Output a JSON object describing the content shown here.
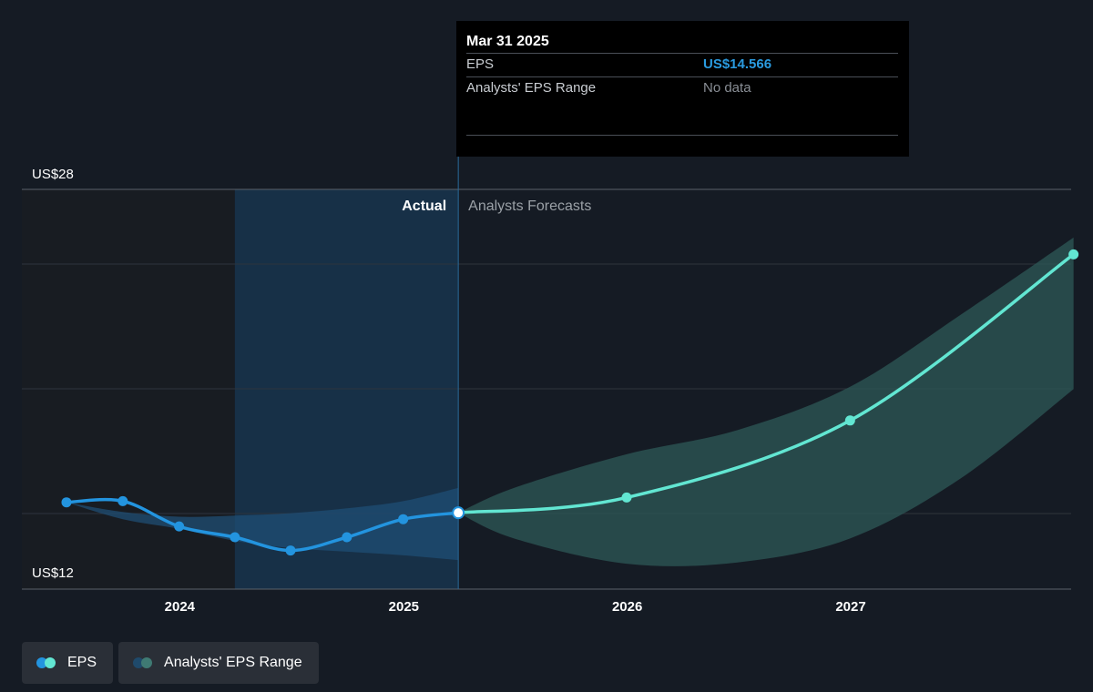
{
  "tooltip": {
    "date": "Mar 31 2025",
    "rows": [
      {
        "label": "EPS",
        "value": "US$14.566"
      },
      {
        "label": "Analysts' EPS Range",
        "value": "No data"
      }
    ]
  },
  "legend": [
    {
      "label": "EPS",
      "colors": [
        "#2394df",
        "#62e6d2"
      ]
    },
    {
      "label": "Analysts' EPS Range",
      "colors": [
        "#1f4a6b",
        "#3f7a73"
      ]
    }
  ],
  "colors": {
    "background": "#151b24",
    "past_shade": "#18344d",
    "eps_actual": "#2394df",
    "eps_forecast": "#62e6d2",
    "range_actual": "#1f4e74",
    "range_forecast": "#2e5a57"
  },
  "chart_data": {
    "type": "line",
    "y_axis_labels": [
      "US$28",
      "US$12"
    ],
    "ylim": [
      12,
      28
    ],
    "x_ticks": [
      "2024",
      "2025",
      "2026",
      "2027"
    ],
    "section_labels": {
      "actual": "Actual",
      "forecast": "Analysts Forecasts"
    },
    "split_date": "2025-03-31",
    "shade_start": "2024-03-31",
    "series": [
      {
        "name": "EPS",
        "segment": "actual",
        "points": [
          {
            "x": "2023-06-30",
            "y": 15.0
          },
          {
            "x": "2023-09-30",
            "y": 15.05
          },
          {
            "x": "2023-12-31",
            "y": 14.0
          },
          {
            "x": "2024-03-31",
            "y": 13.55
          },
          {
            "x": "2024-06-30",
            "y": 13.0
          },
          {
            "x": "2024-09-30",
            "y": 13.55
          },
          {
            "x": "2024-12-31",
            "y": 14.3
          },
          {
            "x": "2025-03-31",
            "y": 14.566
          }
        ]
      },
      {
        "name": "EPS",
        "segment": "forecast",
        "points": [
          {
            "x": "2025-03-31",
            "y": 14.566
          },
          {
            "x": "2025-12-31",
            "y": 15.2
          },
          {
            "x": "2026-12-31",
            "y": 18.4
          },
          {
            "x": "2027-12-31",
            "y": 25.3
          }
        ]
      }
    ],
    "range": {
      "name": "Analysts' EPS Range",
      "actual": {
        "x": [
          "2023-06-30",
          "2023-09-30",
          "2023-12-31",
          "2024-03-31",
          "2024-06-30",
          "2024-09-30",
          "2024-12-31",
          "2025-03-31"
        ],
        "high": [
          15.0,
          14.6,
          14.4,
          14.45,
          14.55,
          14.75,
          15.05,
          15.6
        ],
        "low": [
          15.0,
          14.3,
          13.9,
          13.4,
          13.1,
          12.95,
          12.8,
          12.6
        ]
      },
      "forecast": {
        "x": [
          "2025-03-31",
          "2025-06-30",
          "2025-12-31",
          "2026-06-30",
          "2026-12-31",
          "2027-06-30",
          "2027-12-31"
        ],
        "high": [
          14.566,
          15.6,
          17.0,
          18.0,
          19.8,
          22.8,
          26.0
        ],
        "low": [
          14.566,
          13.5,
          12.45,
          12.5,
          13.5,
          16.0,
          19.7
        ]
      }
    }
  }
}
